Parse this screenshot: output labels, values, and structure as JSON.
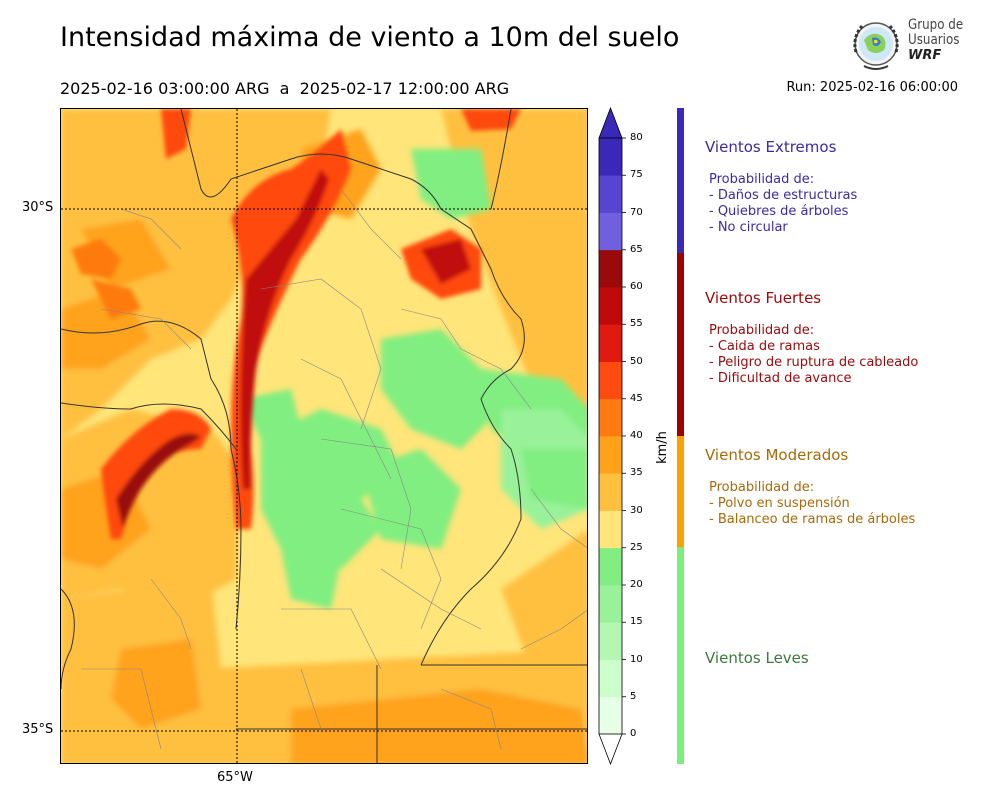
{
  "header": {
    "title": "Intensidad máxima de viento a 10m del suelo",
    "period": "2025-02-16 03:00:00 ARG  a  2025-02-17 12:00:00 ARG",
    "run": "Run: 2025-02-16 06:00:00"
  },
  "logo": {
    "line1": "Grupo de",
    "line2": "Usuarios",
    "line3": "WRF"
  },
  "map": {
    "lat_labels": [
      "30°S",
      "35°S"
    ],
    "lon_labels": [
      "65°W"
    ]
  },
  "colorbar": {
    "units": "km/h",
    "ticks": [
      "0",
      "5",
      "10",
      "15",
      "20",
      "25",
      "30",
      "35",
      "40",
      "45",
      "50",
      "55",
      "60",
      "65",
      "70",
      "75",
      "80"
    ],
    "colors": [
      "#e6ffe6",
      "#ccffcc",
      "#b3f7b3",
      "#99f299",
      "#80ee80",
      "#ffe57a",
      "#ffc040",
      "#ffa21a",
      "#ff7a10",
      "#ff4a10",
      "#e01a10",
      "#c00a0a",
      "#9a0a0a",
      "#7060e0",
      "#5545d0",
      "#3a28b8"
    ],
    "under_color": "#ffffff",
    "over_color": "#3a28b8"
  },
  "categories": [
    {
      "title": "Vientos Extremos",
      "color": "#3a28b8",
      "text_color": "#3b2aa8",
      "intro": "Probabilidad de:",
      "items": [
        "- Daños de estructuras",
        "- Quiebres de árboles",
        "- No circular"
      ]
    },
    {
      "title": "Vientos Fuertes",
      "color": "#a00000",
      "text_color": "#9a0a0a",
      "intro": "Probabilidad de:",
      "items": [
        "- Caida de ramas",
        "- Peligro de ruptura de cableado",
        "- Dificultad de avance"
      ]
    },
    {
      "title": "Vientos Moderados",
      "color": "#ffa000",
      "text_color": "#a86a08",
      "intro": "Probabilidad de:",
      "items": [
        "- Polvo en suspensión",
        "- Balanceo de ramas de árboles"
      ]
    },
    {
      "title": "Vientos Leves",
      "color": "#7af07a",
      "text_color": "#3a7a3a",
      "intro": "",
      "items": []
    }
  ]
}
